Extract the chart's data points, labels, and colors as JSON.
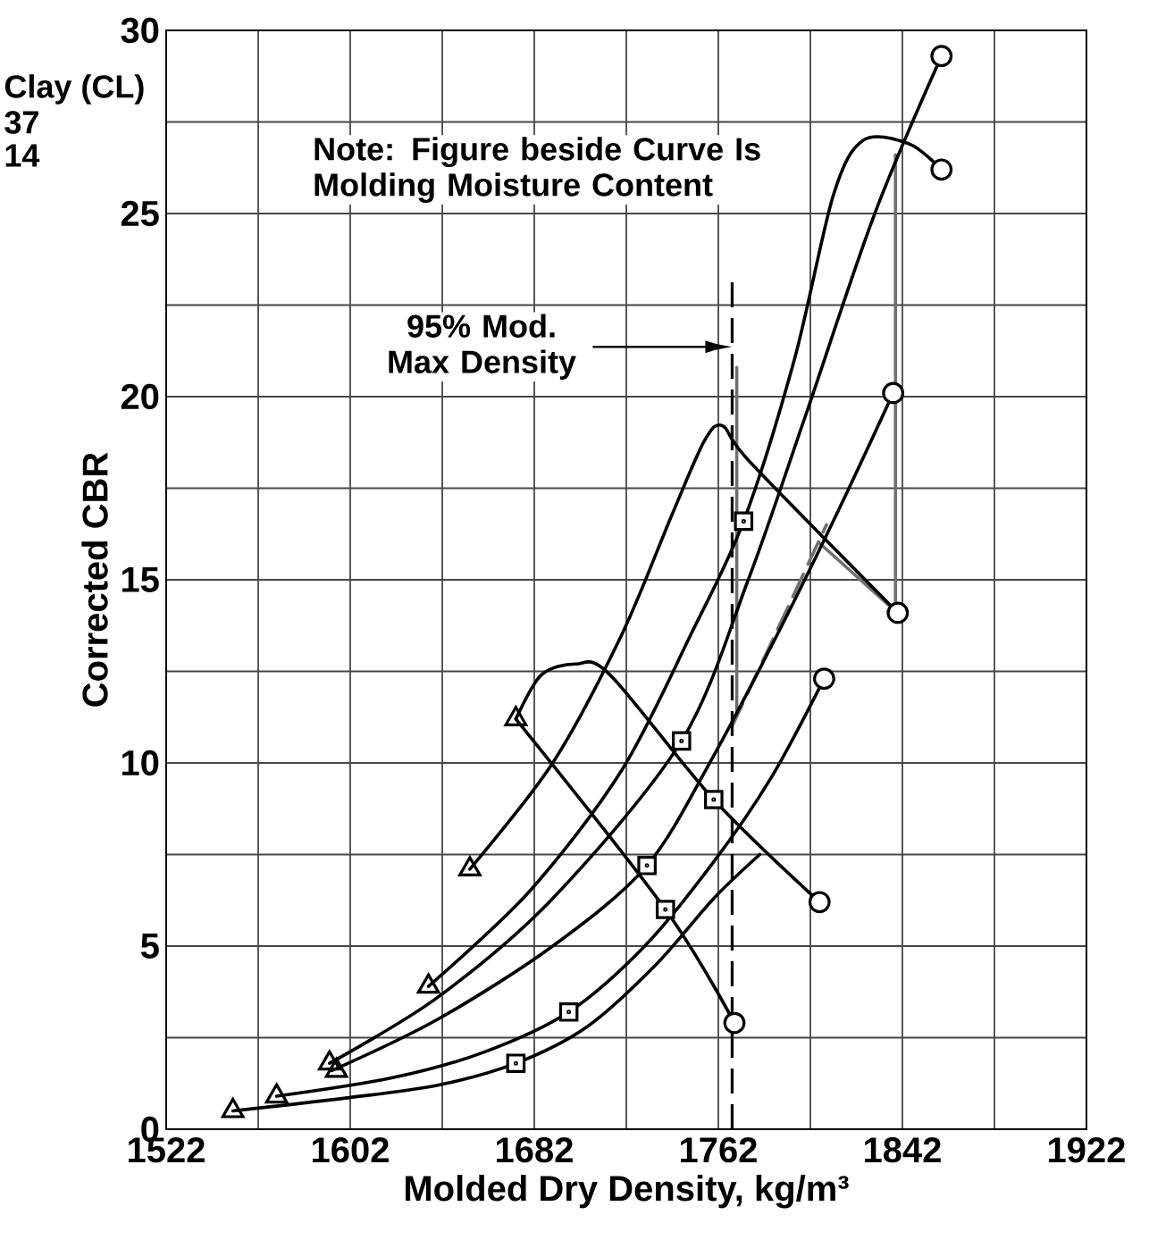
{
  "chart_data": {
    "type": "line",
    "xlabel": "Molded Dry Density, kg/m³",
    "ylabel": "Corrected CBR",
    "annotations": [
      "Clay (CL)",
      "37",
      "14",
      "Note: Figure beside Curve Is Molding Moisture Content"
    ],
    "xlim": [
      1522,
      1922
    ],
    "xticks": [
      1522,
      {
        "value": 1562,
        "label": null
      },
      1602,
      {
        "value": 1642,
        "label": null
      },
      1682,
      {
        "value": 1722,
        "label": null
      },
      1762,
      {
        "value": 1802,
        "label": null
      },
      1842,
      {
        "value": 1882,
        "label": null
      },
      1922
    ],
    "ylim": [
      0,
      30
    ],
    "yticks": [
      0,
      {
        "value": 2.5,
        "label": null
      },
      5,
      {
        "value": 7.5,
        "label": null
      },
      10,
      {
        "value": 12.5,
        "label": null
      },
      15,
      {
        "value": 17.5,
        "label": null
      },
      20,
      {
        "value": 22.5,
        "label": null
      },
      25,
      {
        "value": 27.5,
        "label": null
      },
      30
    ],
    "grid": true,
    "ref_lines": [
      {
        "axis": "x",
        "value": 1768,
        "label": "95% Mod. Max Density",
        "line_style": "dashed"
      }
    ],
    "series": [
      {
        "color": "#707070",
        "x": [
          1770,
          1770
        ],
        "values": [
          11.3,
          20.8
        ]
      },
      {
        "color": "#707070",
        "line_style": "dashed",
        "x": [
          1768,
          1809
        ],
        "values": [
          11.0,
          16.5
        ]
      },
      {
        "color": "#707070",
        "x": [
          1806,
          1838
        ],
        "values": [
          16.0,
          14.2
        ]
      },
      {
        "color": "#707070",
        "x": [
          1839,
          1839
        ],
        "values": [
          14.1,
          26.6
        ]
      },
      {
        "color": "#000000",
        "x": [
          1551,
          1600,
          1640,
          1674,
          1705,
          1735,
          1760,
          1780
        ],
        "values": [
          0.5,
          0.85,
          1.2,
          1.8,
          2.8,
          4.5,
          6.3,
          7.5
        ]
      },
      {
        "color": "#000000",
        "x": [
          1570,
          1620,
          1660,
          1697,
          1730,
          1760,
          1785,
          1808
        ],
        "values": [
          0.9,
          1.4,
          2.1,
          3.2,
          5.0,
          7.3,
          9.6,
          12.3
        ]
      },
      {
        "color": "#000000",
        "x": [
          1594,
          1640,
          1690,
          1731,
          1760,
          1790,
          1815,
          1838
        ],
        "values": [
          1.6,
          3.0,
          5.0,
          7.2,
          10.2,
          13.8,
          17.0,
          20.1
        ]
      },
      {
        "color": "#000000",
        "x": [
          1593,
          1640,
          1690,
          1746,
          1775,
          1800,
          1830,
          1859
        ],
        "values": [
          1.8,
          3.6,
          6.3,
          10.6,
          15.0,
          19.5,
          25.0,
          29.3
        ]
      },
      {
        "color": "#000000",
        "x": [
          1636,
          1680,
          1720,
          1750,
          1773,
          1795,
          1812,
          1825,
          1845,
          1859
        ],
        "values": [
          3.9,
          6.5,
          9.8,
          13.5,
          16.6,
          21.0,
          25.5,
          27.0,
          26.9,
          26.2
        ]
      },
      {
        "color": "#000000",
        "x": [
          1654,
          1690,
          1720,
          1742,
          1756,
          1764,
          1776,
          1840
        ],
        "values": [
          7.1,
          10.0,
          13.5,
          16.8,
          18.8,
          19.2,
          18.2,
          14.1
        ]
      },
      {
        "color": "#000000",
        "x": [
          1674,
          1685,
          1700,
          1715,
          1760,
          1806
        ],
        "values": [
          11.2,
          12.4,
          12.7,
          12.4,
          9.0,
          6.2
        ]
      },
      {
        "color": "#000000",
        "x": [
          1674,
          1739,
          1769
        ],
        "values": [
          11.2,
          6.0,
          2.9
        ]
      },
      {
        "type": "scatter",
        "marker": "triangle",
        "color": "#000000",
        "x": [
          1551,
          1570,
          1593,
          1596,
          1636,
          1654,
          1674
        ],
        "values": [
          0.5,
          0.9,
          1.8,
          1.6,
          3.9,
          7.1,
          11.2
        ]
      },
      {
        "type": "scatter",
        "marker": "square",
        "color": "#000000",
        "x": [
          1674,
          1697,
          1731,
          1739,
          1746,
          1760,
          1773
        ],
        "values": [
          1.8,
          3.2,
          7.2,
          6.0,
          10.6,
          9.0,
          16.6
        ]
      },
      {
        "type": "scatter",
        "marker": "circle",
        "color": "#000000",
        "x": [
          1769,
          1806,
          1808,
          1840,
          1838,
          1859,
          1859
        ],
        "values": [
          2.9,
          6.2,
          12.3,
          14.1,
          20.1,
          26.2,
          29.3
        ]
      }
    ]
  }
}
